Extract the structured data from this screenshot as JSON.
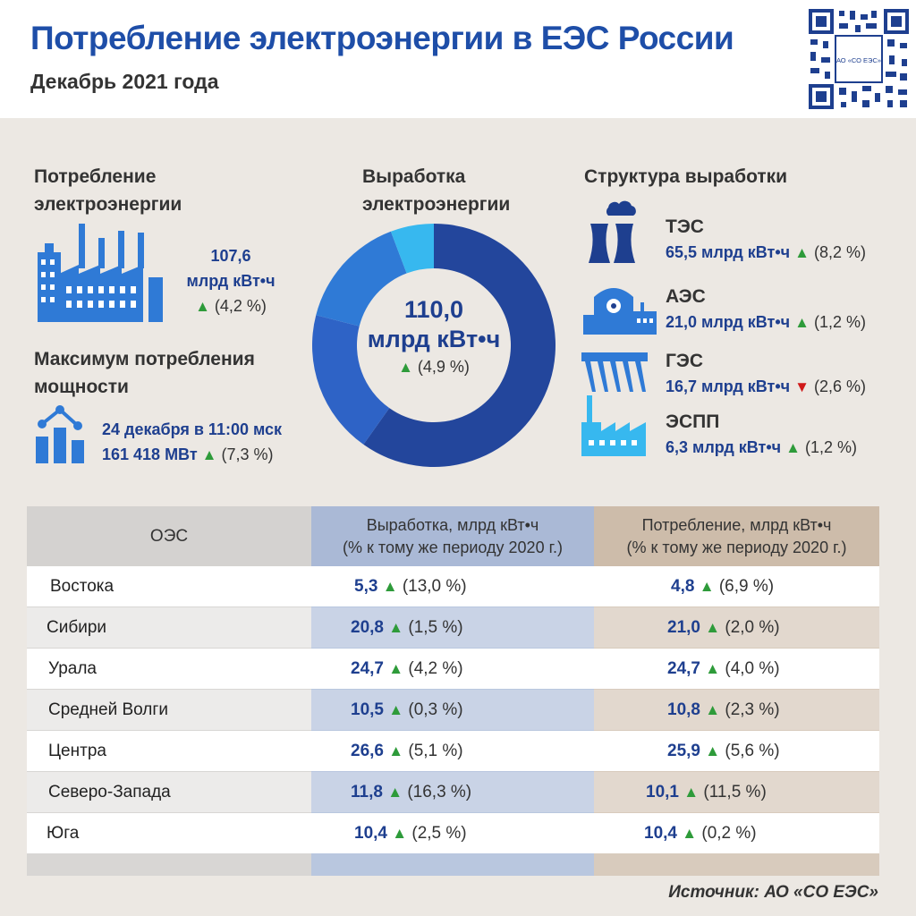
{
  "header": {
    "title": "Потребление электроэнергии в ЕЭС России",
    "subtitle": "Декабрь 2021 года",
    "qr_label": "АО «СО ЕЭС»"
  },
  "consumption": {
    "heading_line1": "Потребление",
    "heading_line2": "электроэнергии",
    "value": "107,6",
    "unit": "млрд кВт•ч",
    "change": "(4,2 %)"
  },
  "max_load": {
    "heading_line1": "Максимум потребления",
    "heading_line2": "мощности",
    "when": "24 декабря в 11:00 мск",
    "value": "161 418 МВт",
    "change": "(7,3 %)"
  },
  "generation": {
    "heading_line1": "Выработка",
    "heading_line2": "электроэнергии",
    "total": "110,0",
    "unit": "млрд кВт•ч",
    "change": "(4,9 %)"
  },
  "structure": {
    "heading": "Структура выработки",
    "items": [
      {
        "name": "ТЭС",
        "value": "65,5 млрд кВт•ч",
        "change": "(8,2 %)",
        "direction": "up"
      },
      {
        "name": "АЭС",
        "value": "21,0 млрд кВт•ч",
        "change": "(1,2 %)",
        "direction": "up"
      },
      {
        "name": "ГЭС",
        "value": "16,7 млрд кВт•ч",
        "change": "(2,6 %)",
        "direction": "down"
      },
      {
        "name": "ЭСПП",
        "value": "6,3 млрд кВт•ч",
        "change": "(1,2 %)",
        "direction": "up"
      }
    ]
  },
  "chart_data": {
    "type": "pie",
    "categories": [
      "ТЭС",
      "АЭС",
      "ГЭС",
      "ЭСПП"
    ],
    "values": [
      65.5,
      21.0,
      16.7,
      6.3
    ],
    "colors": [
      "#23469c",
      "#2e63c6",
      "#2f7ad6",
      "#37b8ef"
    ]
  },
  "table": {
    "header_oes": "ОЭС",
    "header_gen_line1": "Выработка, млрд кВт•ч",
    "header_gen_line2": "(% к тому же периоду 2020 г.)",
    "header_con_line1": "Потребление, млрд кВт•ч",
    "header_con_line2": "(% к тому же периоду 2020 г.)",
    "rows": [
      {
        "name": "Востока",
        "gen": "5,3",
        "gen_pct": "(13,0 %)",
        "con": "4,8",
        "con_pct": "(6,9 %)"
      },
      {
        "name": "Сибири",
        "gen": "20,8",
        "gen_pct": "(1,5 %)",
        "con": "21,0",
        "con_pct": "(2,0 %)"
      },
      {
        "name": "Урала",
        "gen": "24,7",
        "gen_pct": "(4,2 %)",
        "con": "24,7",
        "con_pct": "(4,0 %)"
      },
      {
        "name": "Средней Волги",
        "gen": "10,5",
        "gen_pct": "(0,3 %)",
        "con": "10,8",
        "con_pct": "(2,3 %)"
      },
      {
        "name": "Центра",
        "gen": "26,6",
        "gen_pct": "(5,1 %)",
        "con": "25,9",
        "con_pct": "(5,6 %)"
      },
      {
        "name": "Северо-Запада",
        "gen": "11,8",
        "gen_pct": "(16,3 %)",
        "con": "10,1",
        "con_pct": "(11,5 %)"
      },
      {
        "name": "Юга",
        "gen": "10,4",
        "gen_pct": "(2,5 %)",
        "con": "10,4",
        "con_pct": "(0,2 %)"
      }
    ]
  },
  "footer": {
    "source": "Источник: АО «СО ЕЭС»"
  },
  "colors": {
    "title": "#1e4ea8",
    "value": "#1e3f8f",
    "up": "#2e9b3a",
    "down": "#d01919",
    "icon": "#2f7ad6"
  }
}
